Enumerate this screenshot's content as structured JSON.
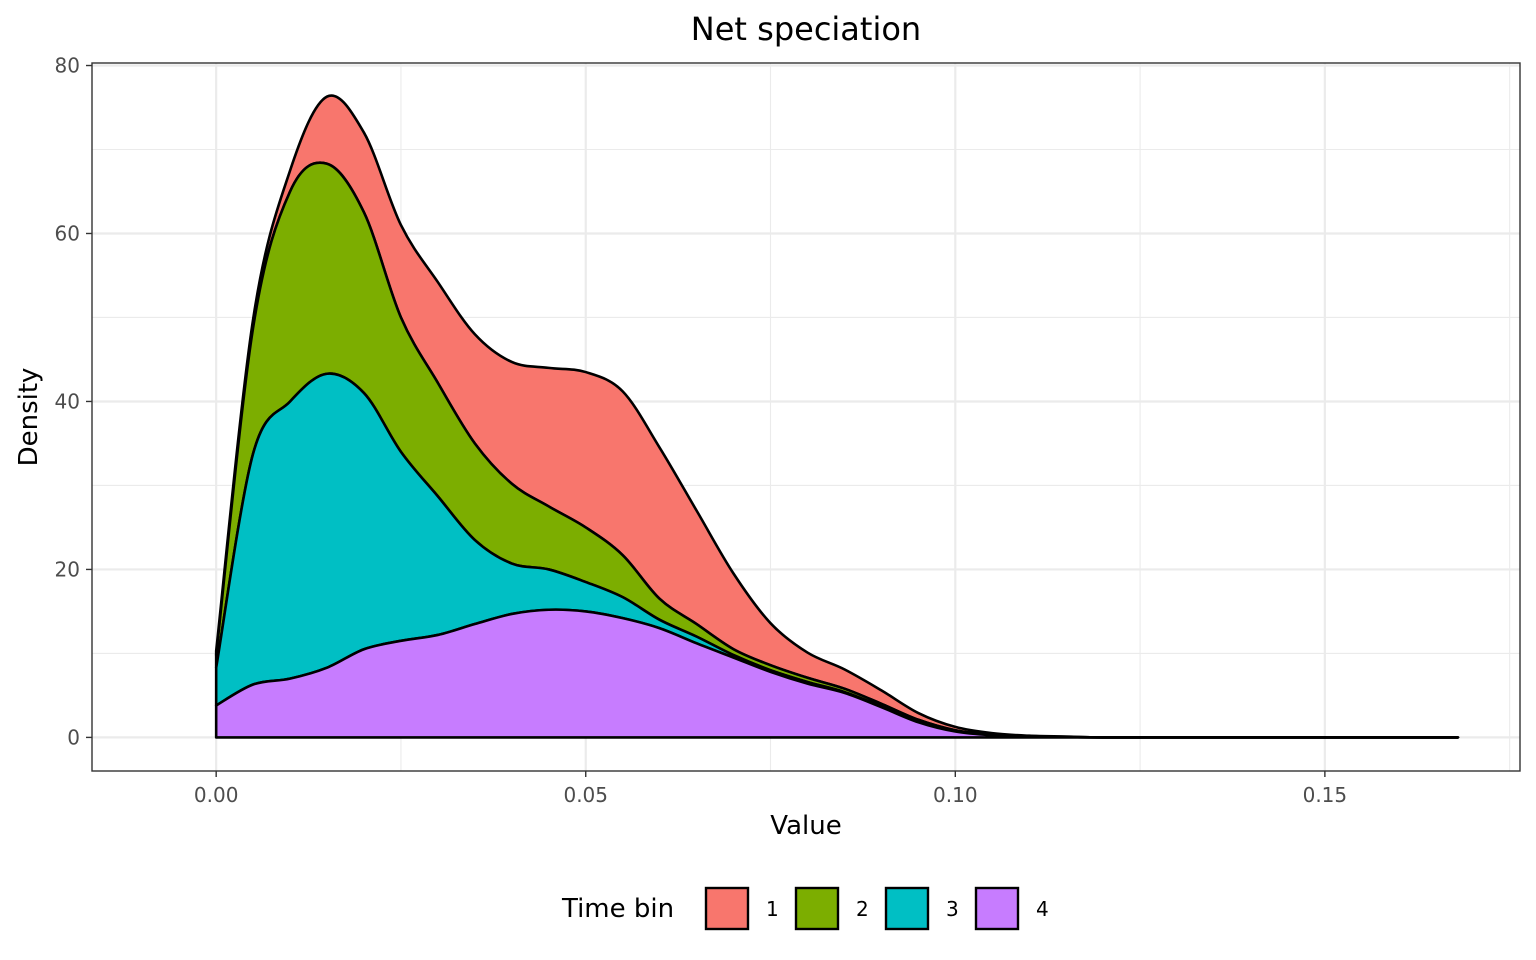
{
  "chart_data": {
    "type": "area",
    "stacked": true,
    "title": "Net speciation",
    "xlabel": "Value",
    "ylabel": "Density",
    "xlim": [
      -0.0168,
      0.1764
    ],
    "ylim": [
      -4,
      80.3
    ],
    "x_ticks": [
      0.0,
      0.05,
      0.1,
      0.15
    ],
    "x_tick_labels": [
      "0.00",
      "0.05",
      "0.10",
      "0.15"
    ],
    "y_ticks": [
      0,
      20,
      40,
      60,
      80
    ],
    "y_tick_labels": [
      "0",
      "20",
      "40",
      "60",
      "80"
    ],
    "grid": true,
    "legend": {
      "title": "Time bin",
      "position": "bottom"
    },
    "x": [
      0.0,
      0.005,
      0.01,
      0.015,
      0.02,
      0.025,
      0.03,
      0.035,
      0.04,
      0.045,
      0.05,
      0.055,
      0.06,
      0.065,
      0.07,
      0.075,
      0.08,
      0.085,
      0.09,
      0.095,
      0.1,
      0.105,
      0.11,
      0.115,
      0.12,
      0.13,
      0.14,
      0.15,
      0.16,
      0.168
    ],
    "series": [
      {
        "name": "1",
        "color": "#F8766D",
        "values": [
          0.5,
          1.0,
          2.5,
          8.0,
          9.5,
          11.0,
          12.0,
          13.0,
          14.5,
          16.5,
          18.5,
          19.5,
          18.0,
          13.5,
          9.0,
          5.0,
          3.0,
          2.3,
          1.6,
          0.8,
          0.4,
          0.2,
          0.1,
          0.05,
          0.0,
          0.0,
          0.0,
          0.0,
          0.0,
          0.0
        ]
      },
      {
        "name": "2",
        "color": "#7CAE00",
        "values": [
          1.5,
          15.0,
          25.0,
          25.0,
          21.5,
          16.0,
          13.5,
          11.5,
          9.5,
          7.5,
          6.5,
          5.0,
          2.5,
          1.5,
          0.7,
          0.6,
          0.5,
          0.4,
          0.3,
          0.2,
          0.1,
          0.05,
          0.0,
          0.0,
          0.0,
          0.0,
          0.0,
          0.0,
          0.0,
          0.0
        ]
      },
      {
        "name": "3",
        "color": "#00BFC4",
        "values": [
          4.5,
          27.5,
          33.0,
          35.0,
          30.5,
          22.5,
          16.5,
          10.0,
          6.0,
          4.8,
          3.5,
          2.5,
          1.0,
          0.8,
          0.3,
          0.2,
          0.2,
          0.1,
          0.1,
          0.1,
          0.05,
          0.0,
          0.0,
          0.0,
          0.0,
          0.0,
          0.0,
          0.0,
          0.0,
          0.0
        ]
      },
      {
        "name": "4",
        "color": "#C77CFF",
        "values": [
          3.8,
          6.3,
          7.0,
          8.3,
          10.5,
          11.5,
          12.2,
          13.5,
          14.7,
          15.2,
          15.0,
          14.2,
          13.0,
          11.2,
          9.5,
          7.8,
          6.4,
          5.3,
          3.6,
          1.8,
          0.7,
          0.25,
          0.1,
          0.05,
          0.0,
          0.0,
          0.0,
          0.0,
          0.0,
          0.0
        ]
      }
    ]
  }
}
